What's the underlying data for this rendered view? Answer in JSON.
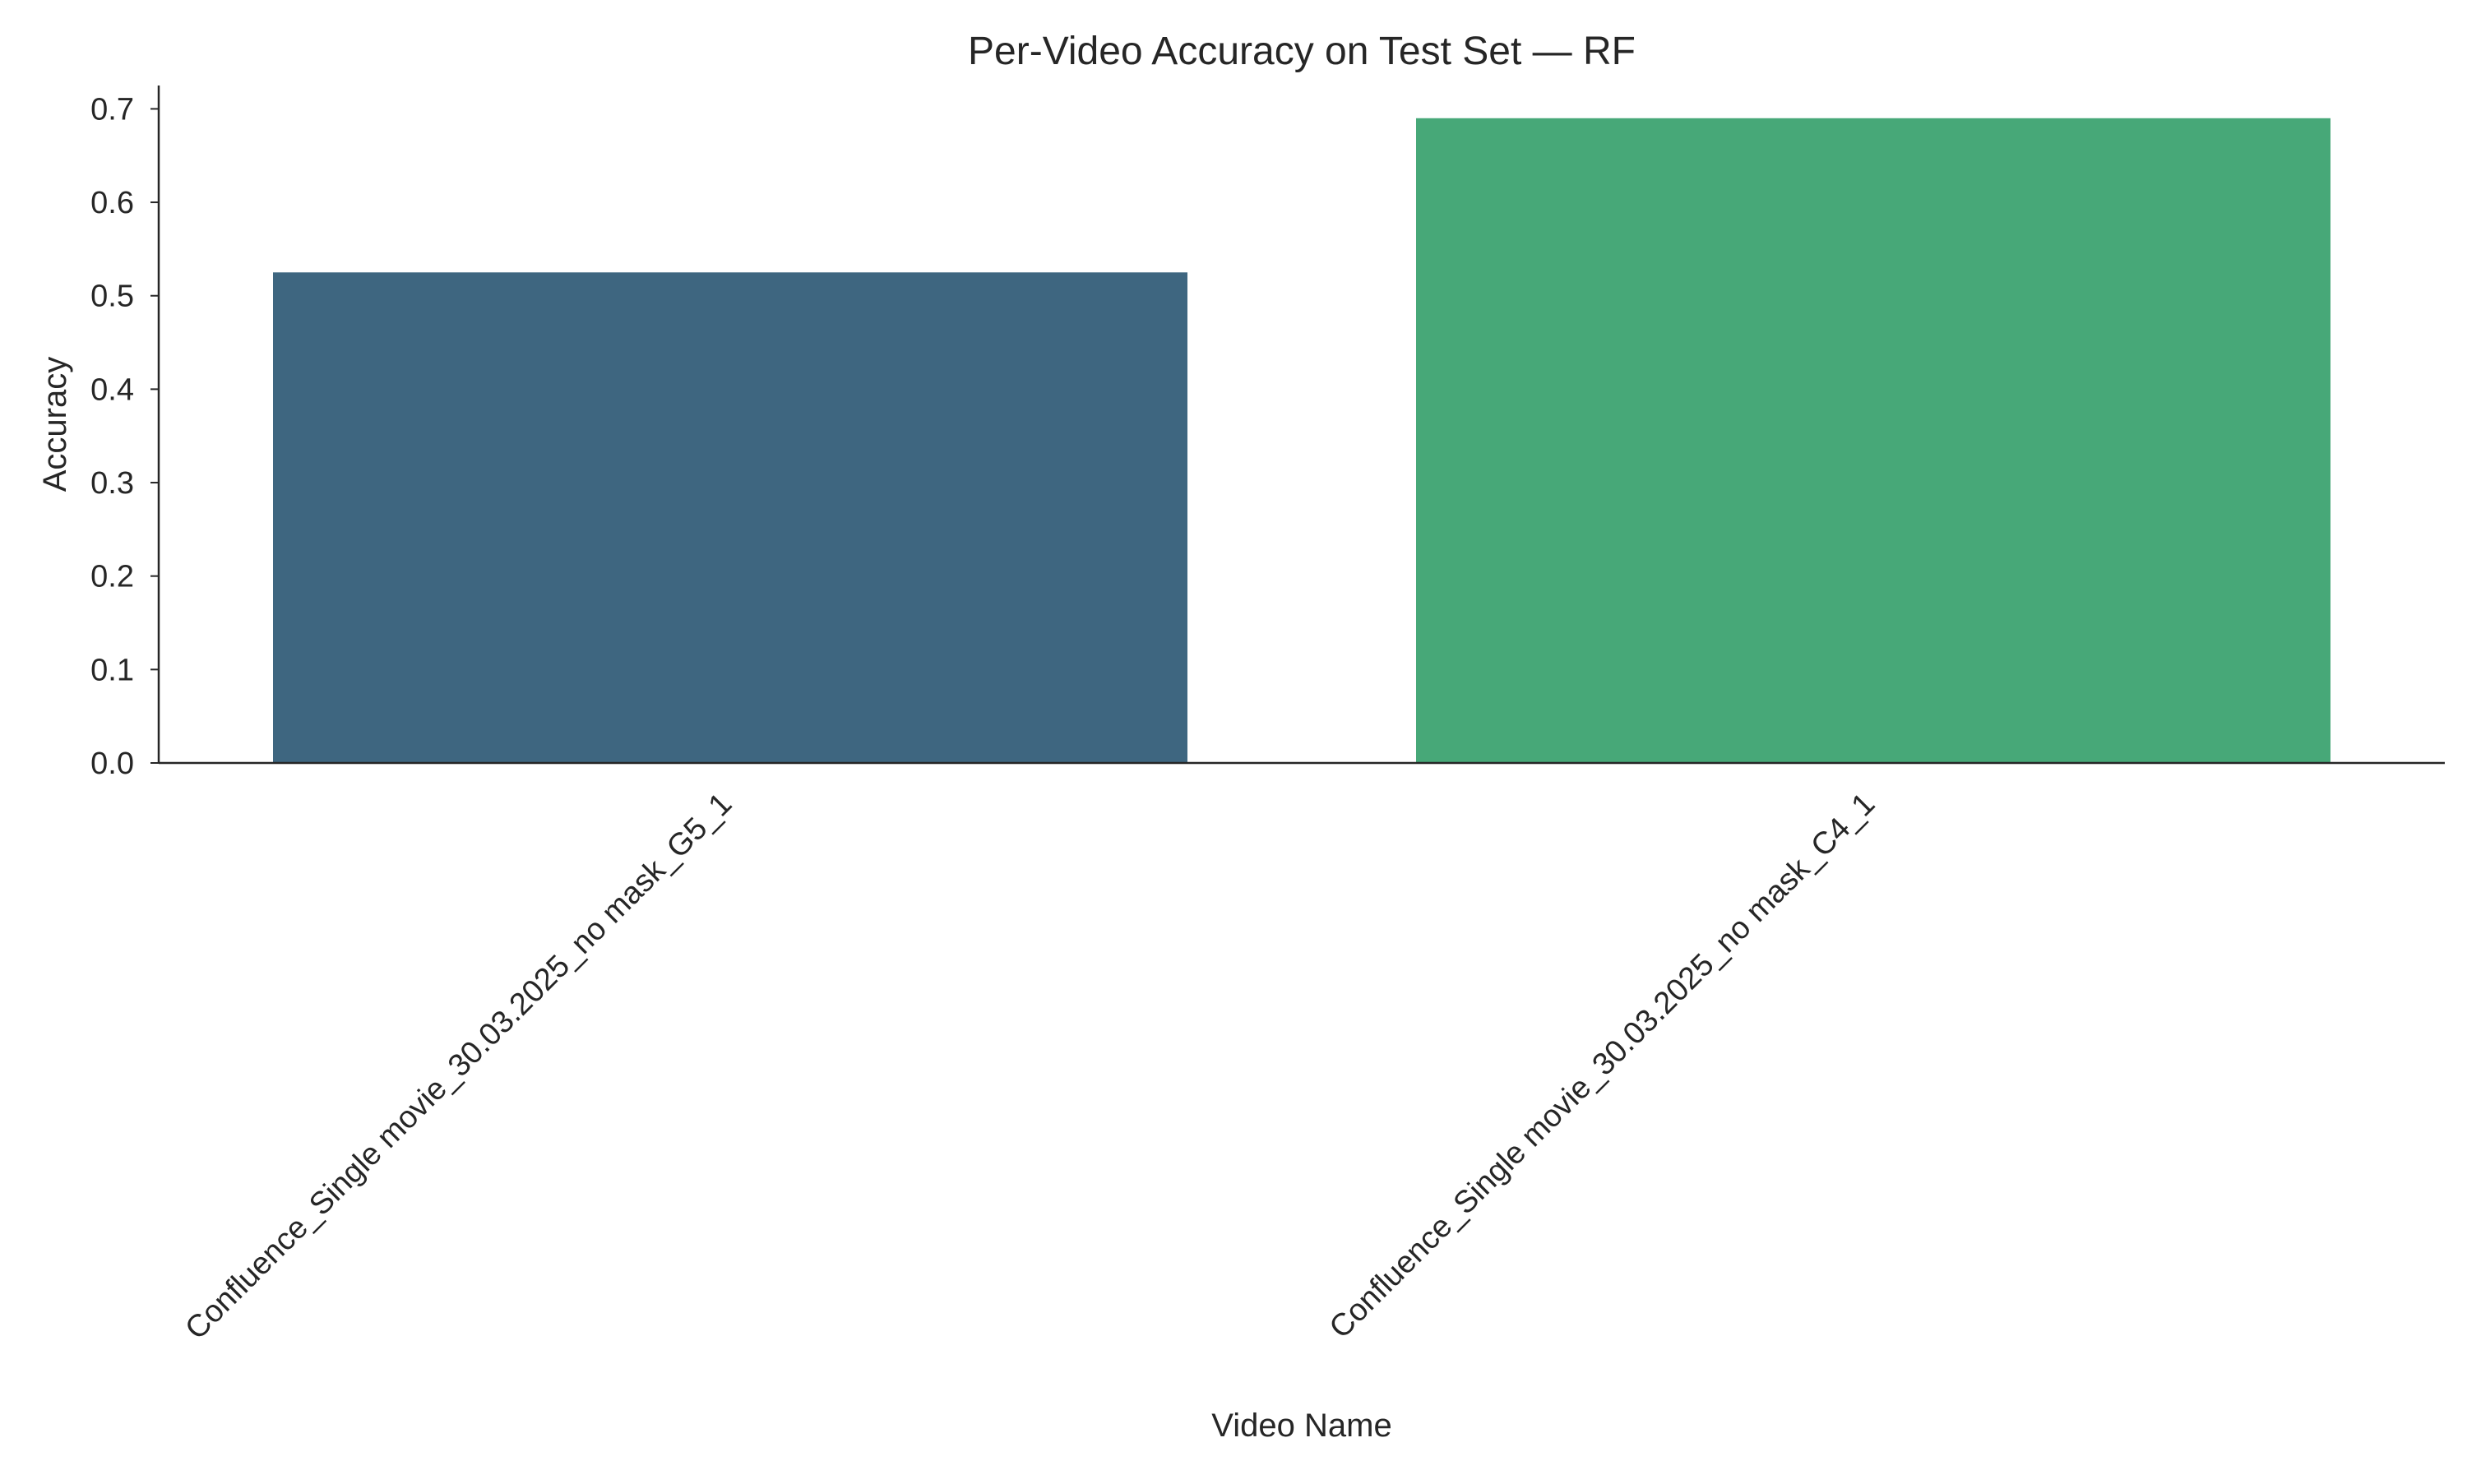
{
  "chart_data": {
    "type": "bar",
    "title": "Per-Video Accuracy on Test Set — RF",
    "xlabel": "Video Name",
    "ylabel": "Accuracy",
    "categories": [
      "Confluence_Single movie_30.03.2025_no mask_G5_1",
      "Confluence_Single movie_30.03.2025_no mask_C4_1"
    ],
    "values": [
      0.525,
      0.69
    ],
    "colors": [
      "#3e6680",
      "#47a878"
    ],
    "ylim": [
      0,
      0.725
    ],
    "yticks": [
      0.0,
      0.1,
      0.2,
      0.3,
      0.4,
      0.5,
      0.6,
      0.7
    ],
    "ytick_labels": [
      "0.0",
      "0.1",
      "0.2",
      "0.3",
      "0.4",
      "0.5",
      "0.6",
      "0.7"
    ],
    "grid": false,
    "legend": "none"
  }
}
